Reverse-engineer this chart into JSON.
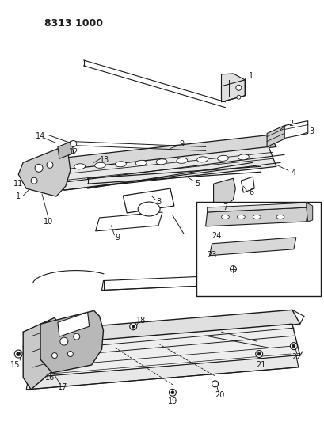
{
  "title": "8313 1000",
  "bg_color": "#ffffff",
  "title_fontsize": 9,
  "title_fontweight": "bold",
  "figsize": [
    4.1,
    5.33
  ],
  "dpi": 100
}
